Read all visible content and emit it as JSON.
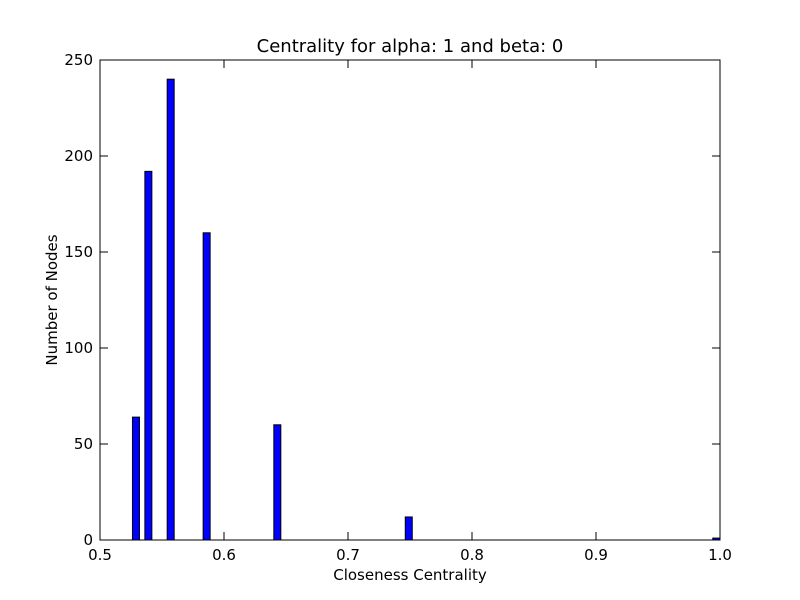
{
  "chart_data": {
    "type": "bar",
    "title": "Centrality for alpha: 1 and beta: 0",
    "xlabel": "Closeness Centrality",
    "ylabel": "Number of Nodes",
    "xlim": [
      0.5,
      1.0
    ],
    "ylim": [
      0,
      250
    ],
    "xticks": [
      "0.5",
      "0.6",
      "0.7",
      "0.8",
      "0.9",
      "1.0"
    ],
    "yticks": [
      "0",
      "50",
      "100",
      "150",
      "200",
      "250"
    ],
    "grid": false,
    "bar_color": "#0000ff",
    "bars": [
      {
        "x": 0.529,
        "value": 64
      },
      {
        "x": 0.539,
        "value": 192
      },
      {
        "x": 0.557,
        "value": 240
      },
      {
        "x": 0.586,
        "value": 160
      },
      {
        "x": 0.643,
        "value": 60
      },
      {
        "x": 0.749,
        "value": 12
      },
      {
        "x": 0.997,
        "value": 1
      }
    ]
  }
}
